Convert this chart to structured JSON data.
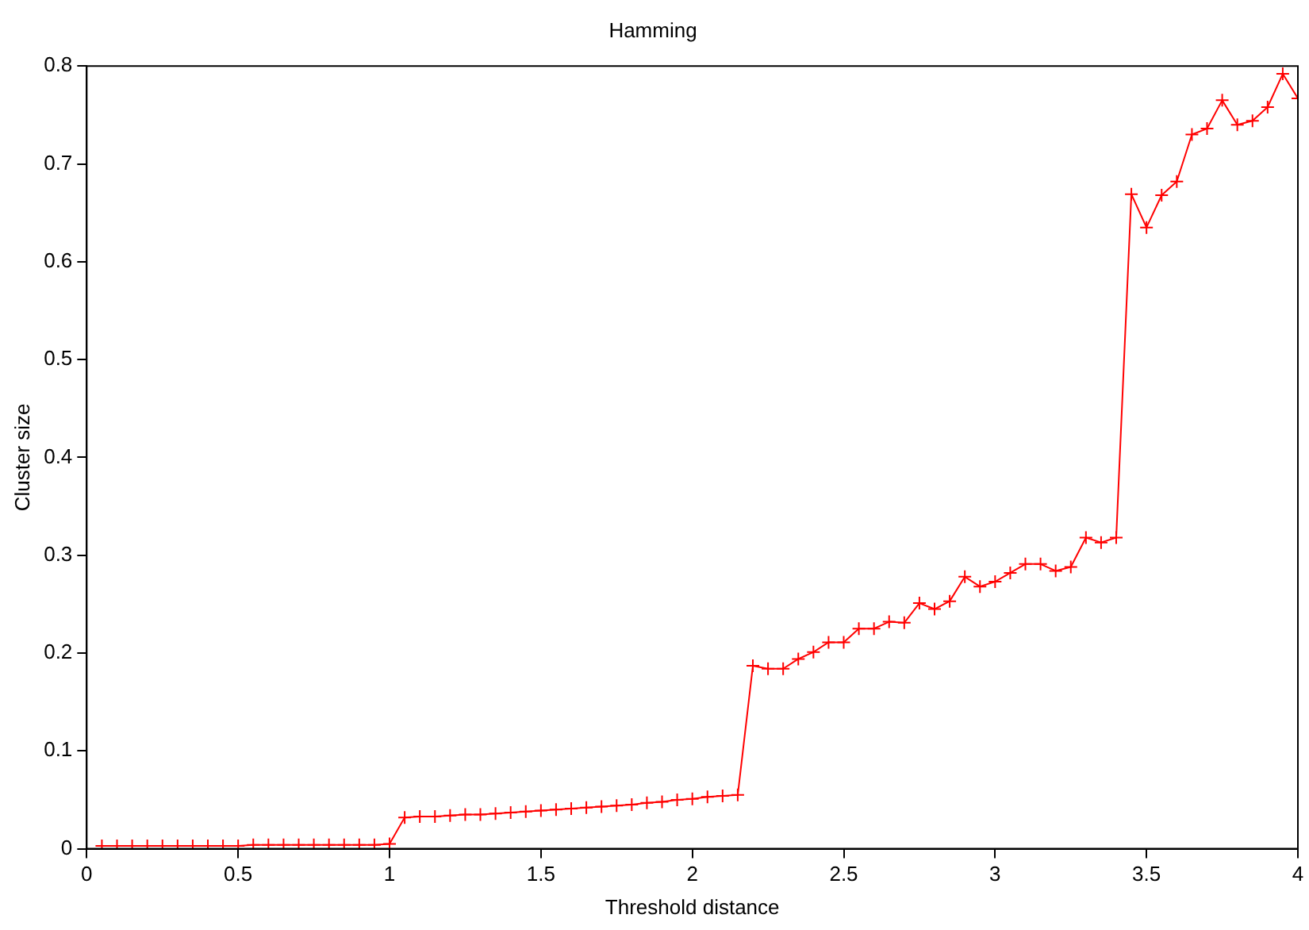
{
  "chart_data": {
    "type": "line",
    "title": "Hamming",
    "xlabel": "Threshold distance",
    "ylabel": "Cluster size",
    "x": [
      0.05,
      0.1,
      0.15,
      0.2,
      0.25,
      0.3,
      0.35,
      0.4,
      0.45,
      0.5,
      0.55,
      0.6,
      0.65,
      0.7,
      0.75,
      0.8,
      0.85,
      0.9,
      0.95,
      1.0,
      1.05,
      1.1,
      1.15,
      1.2,
      1.25,
      1.3,
      1.35,
      1.4,
      1.45,
      1.5,
      1.55,
      1.6,
      1.65,
      1.7,
      1.75,
      1.8,
      1.85,
      1.9,
      1.95,
      2.0,
      2.05,
      2.1,
      2.15,
      2.2,
      2.25,
      2.3,
      2.35,
      2.4,
      2.45,
      2.5,
      2.55,
      2.6,
      2.65,
      2.7,
      2.75,
      2.8,
      2.85,
      2.9,
      2.95,
      3.0,
      3.05,
      3.1,
      3.15,
      3.2,
      3.25,
      3.3,
      3.35,
      3.4,
      3.45,
      3.5,
      3.55,
      3.6,
      3.65,
      3.7,
      3.75,
      3.8,
      3.85,
      3.9,
      3.95,
      4.0
    ],
    "series": [
      {
        "color": "#ff0000",
        "values": [
          0.003,
          0.003,
          0.003,
          0.003,
          0.003,
          0.003,
          0.003,
          0.003,
          0.003,
          0.003,
          0.004,
          0.004,
          0.004,
          0.004,
          0.004,
          0.004,
          0.004,
          0.004,
          0.004,
          0.005,
          0.032,
          0.033,
          0.033,
          0.034,
          0.035,
          0.035,
          0.036,
          0.037,
          0.038,
          0.039,
          0.04,
          0.041,
          0.042,
          0.043,
          0.044,
          0.045,
          0.047,
          0.048,
          0.05,
          0.051,
          0.053,
          0.054,
          0.055,
          0.187,
          0.184,
          0.184,
          0.194,
          0.201,
          0.211,
          0.211,
          0.225,
          0.225,
          0.232,
          0.231,
          0.251,
          0.245,
          0.253,
          0.278,
          0.268,
          0.273,
          0.282,
          0.291,
          0.291,
          0.284,
          0.288,
          0.318,
          0.313,
          0.318,
          0.669,
          0.635,
          0.668,
          0.682,
          0.73,
          0.736,
          0.765,
          0.74,
          0.744,
          0.758,
          0.792,
          0.767
        ]
      }
    ],
    "xlim": [
      0,
      4
    ],
    "xticks": [
      0,
      0.5,
      1,
      1.5,
      2,
      2.5,
      3,
      3.5,
      4
    ],
    "ylim": [
      0,
      0.8
    ],
    "yticks": [
      0,
      0.1,
      0.2,
      0.3,
      0.4,
      0.5,
      0.6,
      0.7,
      0.8
    ],
    "marker": "cross",
    "line_style": "solid",
    "grid": false,
    "legend": false
  }
}
